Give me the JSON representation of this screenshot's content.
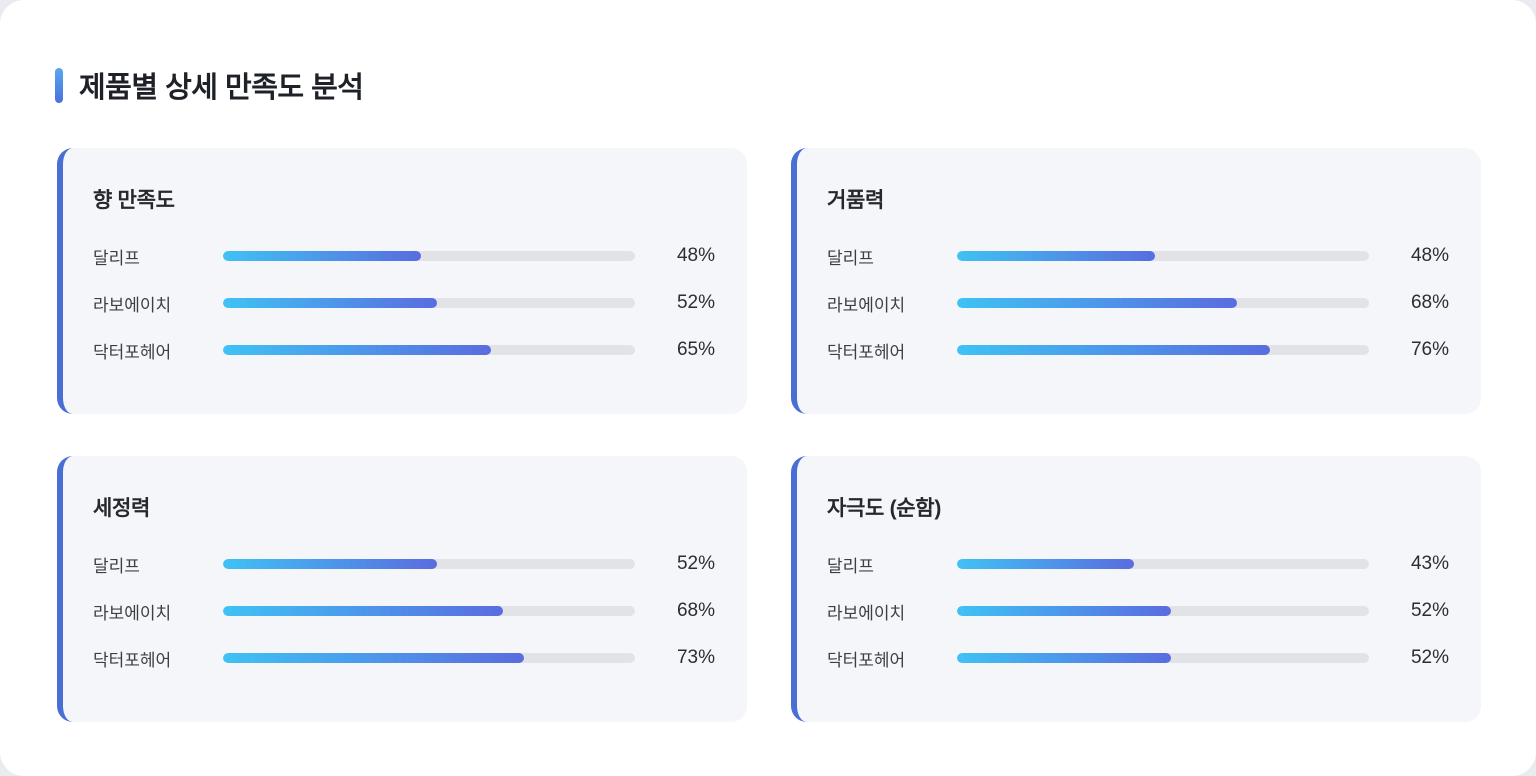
{
  "page": {
    "title": "제품별 상세 만족도 분석"
  },
  "colors": {
    "outer_bg": "#e9ebee",
    "canvas_bg": "#ffffff",
    "card_bg": "#f5f6f9",
    "card_accent": "#4a6fd4",
    "title_accent_top": "#58a8f0",
    "title_accent_bottom": "#4a70dd",
    "bar_track": "#e2e3e6",
    "bar_fill_start": "#3fc2f4",
    "bar_fill_end": "#5a6ce0",
    "title_text": "#1e2228",
    "label_text": "#3b3f46",
    "value_text": "#2a2d33"
  },
  "chart_data": [
    {
      "type": "bar",
      "orientation": "horizontal",
      "title": "향 만족도",
      "categories": [
        "달리프",
        "라보에이치",
        "닥터포헤어"
      ],
      "values": [
        48,
        52,
        65
      ],
      "value_labels": [
        "48%",
        "52%",
        "65%"
      ],
      "unit": "%",
      "xlim": [
        0,
        100
      ],
      "grid": false,
      "legend": false
    },
    {
      "type": "bar",
      "orientation": "horizontal",
      "title": "거품력",
      "categories": [
        "달리프",
        "라보에이치",
        "닥터포헤어"
      ],
      "values": [
        48,
        68,
        76
      ],
      "value_labels": [
        "48%",
        "68%",
        "76%"
      ],
      "unit": "%",
      "xlim": [
        0,
        100
      ],
      "grid": false,
      "legend": false
    },
    {
      "type": "bar",
      "orientation": "horizontal",
      "title": "세정력",
      "categories": [
        "달리프",
        "라보에이치",
        "닥터포헤어"
      ],
      "values": [
        52,
        68,
        73
      ],
      "value_labels": [
        "52%",
        "68%",
        "73%"
      ],
      "unit": "%",
      "xlim": [
        0,
        100
      ],
      "grid": false,
      "legend": false
    },
    {
      "type": "bar",
      "orientation": "horizontal",
      "title": "자극도 (순함)",
      "categories": [
        "달리프",
        "라보에이치",
        "닥터포헤어"
      ],
      "values": [
        43,
        52,
        52
      ],
      "value_labels": [
        "43%",
        "52%",
        "52%"
      ],
      "unit": "%",
      "xlim": [
        0,
        100
      ],
      "grid": false,
      "legend": false
    }
  ]
}
